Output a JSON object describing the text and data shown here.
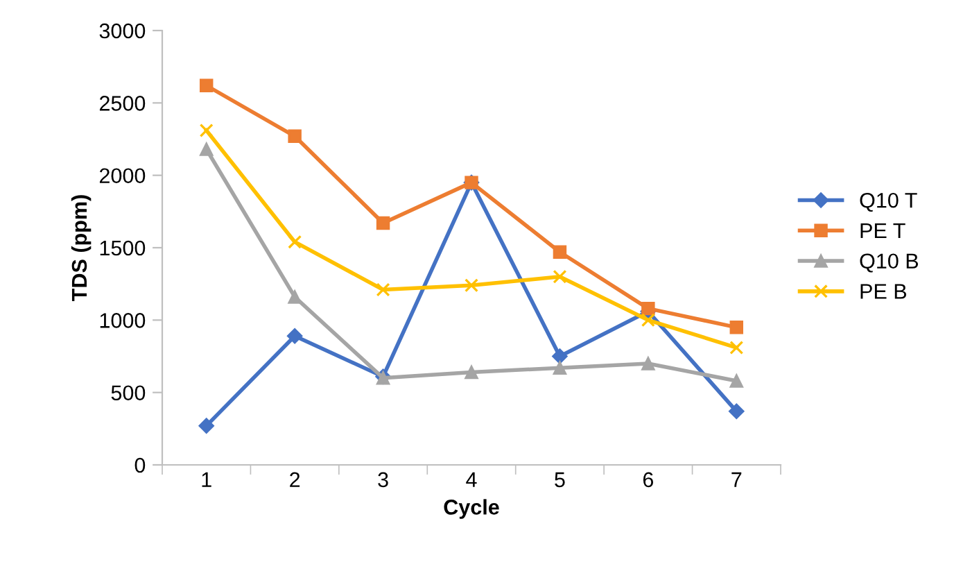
{
  "chart_data": {
    "type": "line",
    "xlabel": "Cycle",
    "ylabel": "TDS (ppm)",
    "categories": [
      "1",
      "2",
      "3",
      "4",
      "5",
      "6",
      "7"
    ],
    "series": [
      {
        "name": "Q10 T",
        "color": "#4472c4",
        "marker": "diamond",
        "values": [
          270,
          890,
          610,
          1950,
          750,
          1060,
          370
        ]
      },
      {
        "name": "PE T",
        "color": "#ed7d31",
        "marker": "square",
        "values": [
          2620,
          2270,
          1670,
          1950,
          1470,
          1080,
          950
        ]
      },
      {
        "name": "Q10 B",
        "color": "#a5a5a5",
        "marker": "triangle",
        "values": [
          2180,
          1160,
          600,
          640,
          670,
          700,
          580
        ]
      },
      {
        "name": "PE B",
        "color": "#ffc000",
        "marker": "cross",
        "values": [
          2310,
          1540,
          1210,
          1240,
          1300,
          1000,
          810
        ]
      }
    ],
    "ylim": [
      0,
      3000
    ],
    "yticks": [
      0,
      500,
      1000,
      1500,
      2000,
      2500,
      3000
    ],
    "grid": false,
    "legend": "right"
  }
}
